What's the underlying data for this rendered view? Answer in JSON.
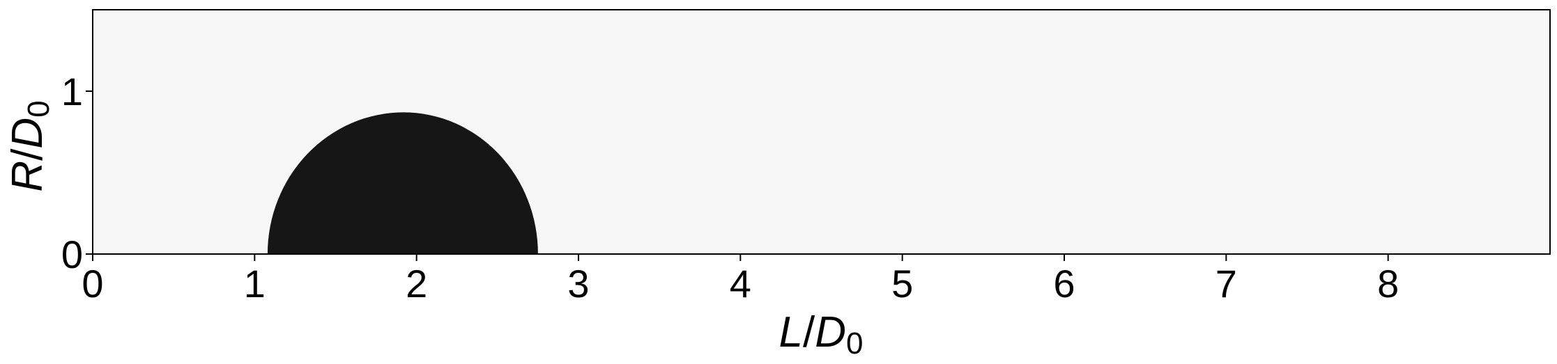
{
  "chart_data": {
    "type": "heatmap",
    "description_free": true,
    "x": {
      "label_var": "L",
      "label_sep": "/",
      "label_den": "D",
      "label_sub": "0",
      "lim": [
        0,
        9
      ],
      "ticks": [
        0,
        1,
        2,
        3,
        4,
        5,
        6,
        7,
        8
      ],
      "tick_labels": [
        "0",
        "1",
        "2",
        "3",
        "4",
        "5",
        "6",
        "7",
        "8"
      ]
    },
    "y": {
      "label_var": "R",
      "label_sep": "/",
      "label_den": "D",
      "label_sub": "0",
      "lim": [
        0,
        1.5
      ],
      "ticks": [
        0,
        1
      ],
      "tick_labels": [
        "0",
        "1"
      ]
    },
    "grid": false,
    "legend": "none",
    "background_color": "#f7f7f7",
    "phase_color": "#161616",
    "phase_region": {
      "shape": "half-ellipse",
      "x_left": 1.08,
      "x_right": 2.75,
      "x_peak": 1.92,
      "y_peak": 0.87
    }
  }
}
